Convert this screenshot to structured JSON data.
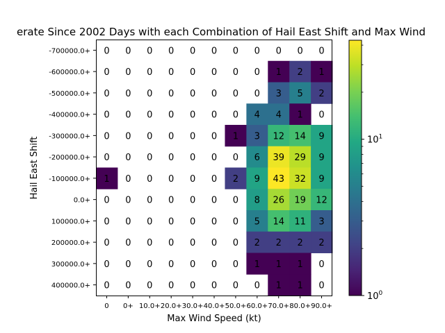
{
  "chart_data": {
    "type": "heatmap",
    "title": "erate Since 2002 Days with each Combination of Hail East Shift and Max Wind",
    "xlabel": "Max Wind Speed (kt)",
    "ylabel": "Hail East Shift",
    "x_categories": [
      "0",
      "0+",
      "10.0+",
      "20.0+",
      "30.0+",
      "40.0+",
      "50.0+",
      "60.0+",
      "70.0+",
      "80.0+",
      "90.0+"
    ],
    "y_categories": [
      "-700000.0+",
      "-600000.0+",
      "-500000.0+",
      "-400000.0+",
      "-300000.0+",
      "-200000.0+",
      "-100000.0+",
      "0.0+",
      "100000.0+",
      "200000.0+",
      "300000.0+",
      "400000.0+"
    ],
    "values": [
      [
        0,
        0,
        0,
        0,
        0,
        0,
        0,
        0,
        0,
        0,
        0
      ],
      [
        0,
        0,
        0,
        0,
        0,
        0,
        0,
        0,
        1,
        2,
        1
      ],
      [
        0,
        0,
        0,
        0,
        0,
        0,
        0,
        0,
        3,
        5,
        2
      ],
      [
        0,
        0,
        0,
        0,
        0,
        0,
        0,
        4,
        4,
        1,
        0
      ],
      [
        0,
        0,
        0,
        0,
        0,
        0,
        1,
        3,
        12,
        14,
        9
      ],
      [
        0,
        0,
        0,
        0,
        0,
        0,
        0,
        6,
        39,
        29,
        9
      ],
      [
        1,
        0,
        0,
        0,
        0,
        0,
        2,
        9,
        43,
        32,
        9
      ],
      [
        0,
        0,
        0,
        0,
        0,
        0,
        0,
        8,
        26,
        19,
        12
      ],
      [
        0,
        0,
        0,
        0,
        0,
        0,
        0,
        5,
        14,
        11,
        3
      ],
      [
        0,
        0,
        0,
        0,
        0,
        0,
        0,
        2,
        2,
        2,
        2
      ],
      [
        0,
        0,
        0,
        0,
        0,
        0,
        0,
        1,
        1,
        1,
        0
      ],
      [
        0,
        0,
        0,
        0,
        0,
        0,
        0,
        0,
        1,
        1,
        0
      ]
    ],
    "colorbar": {
      "scale": "log",
      "colormap": "viridis",
      "range": [
        1,
        43
      ],
      "tick_labels": [
        "10^0",
        "10^1"
      ]
    }
  }
}
